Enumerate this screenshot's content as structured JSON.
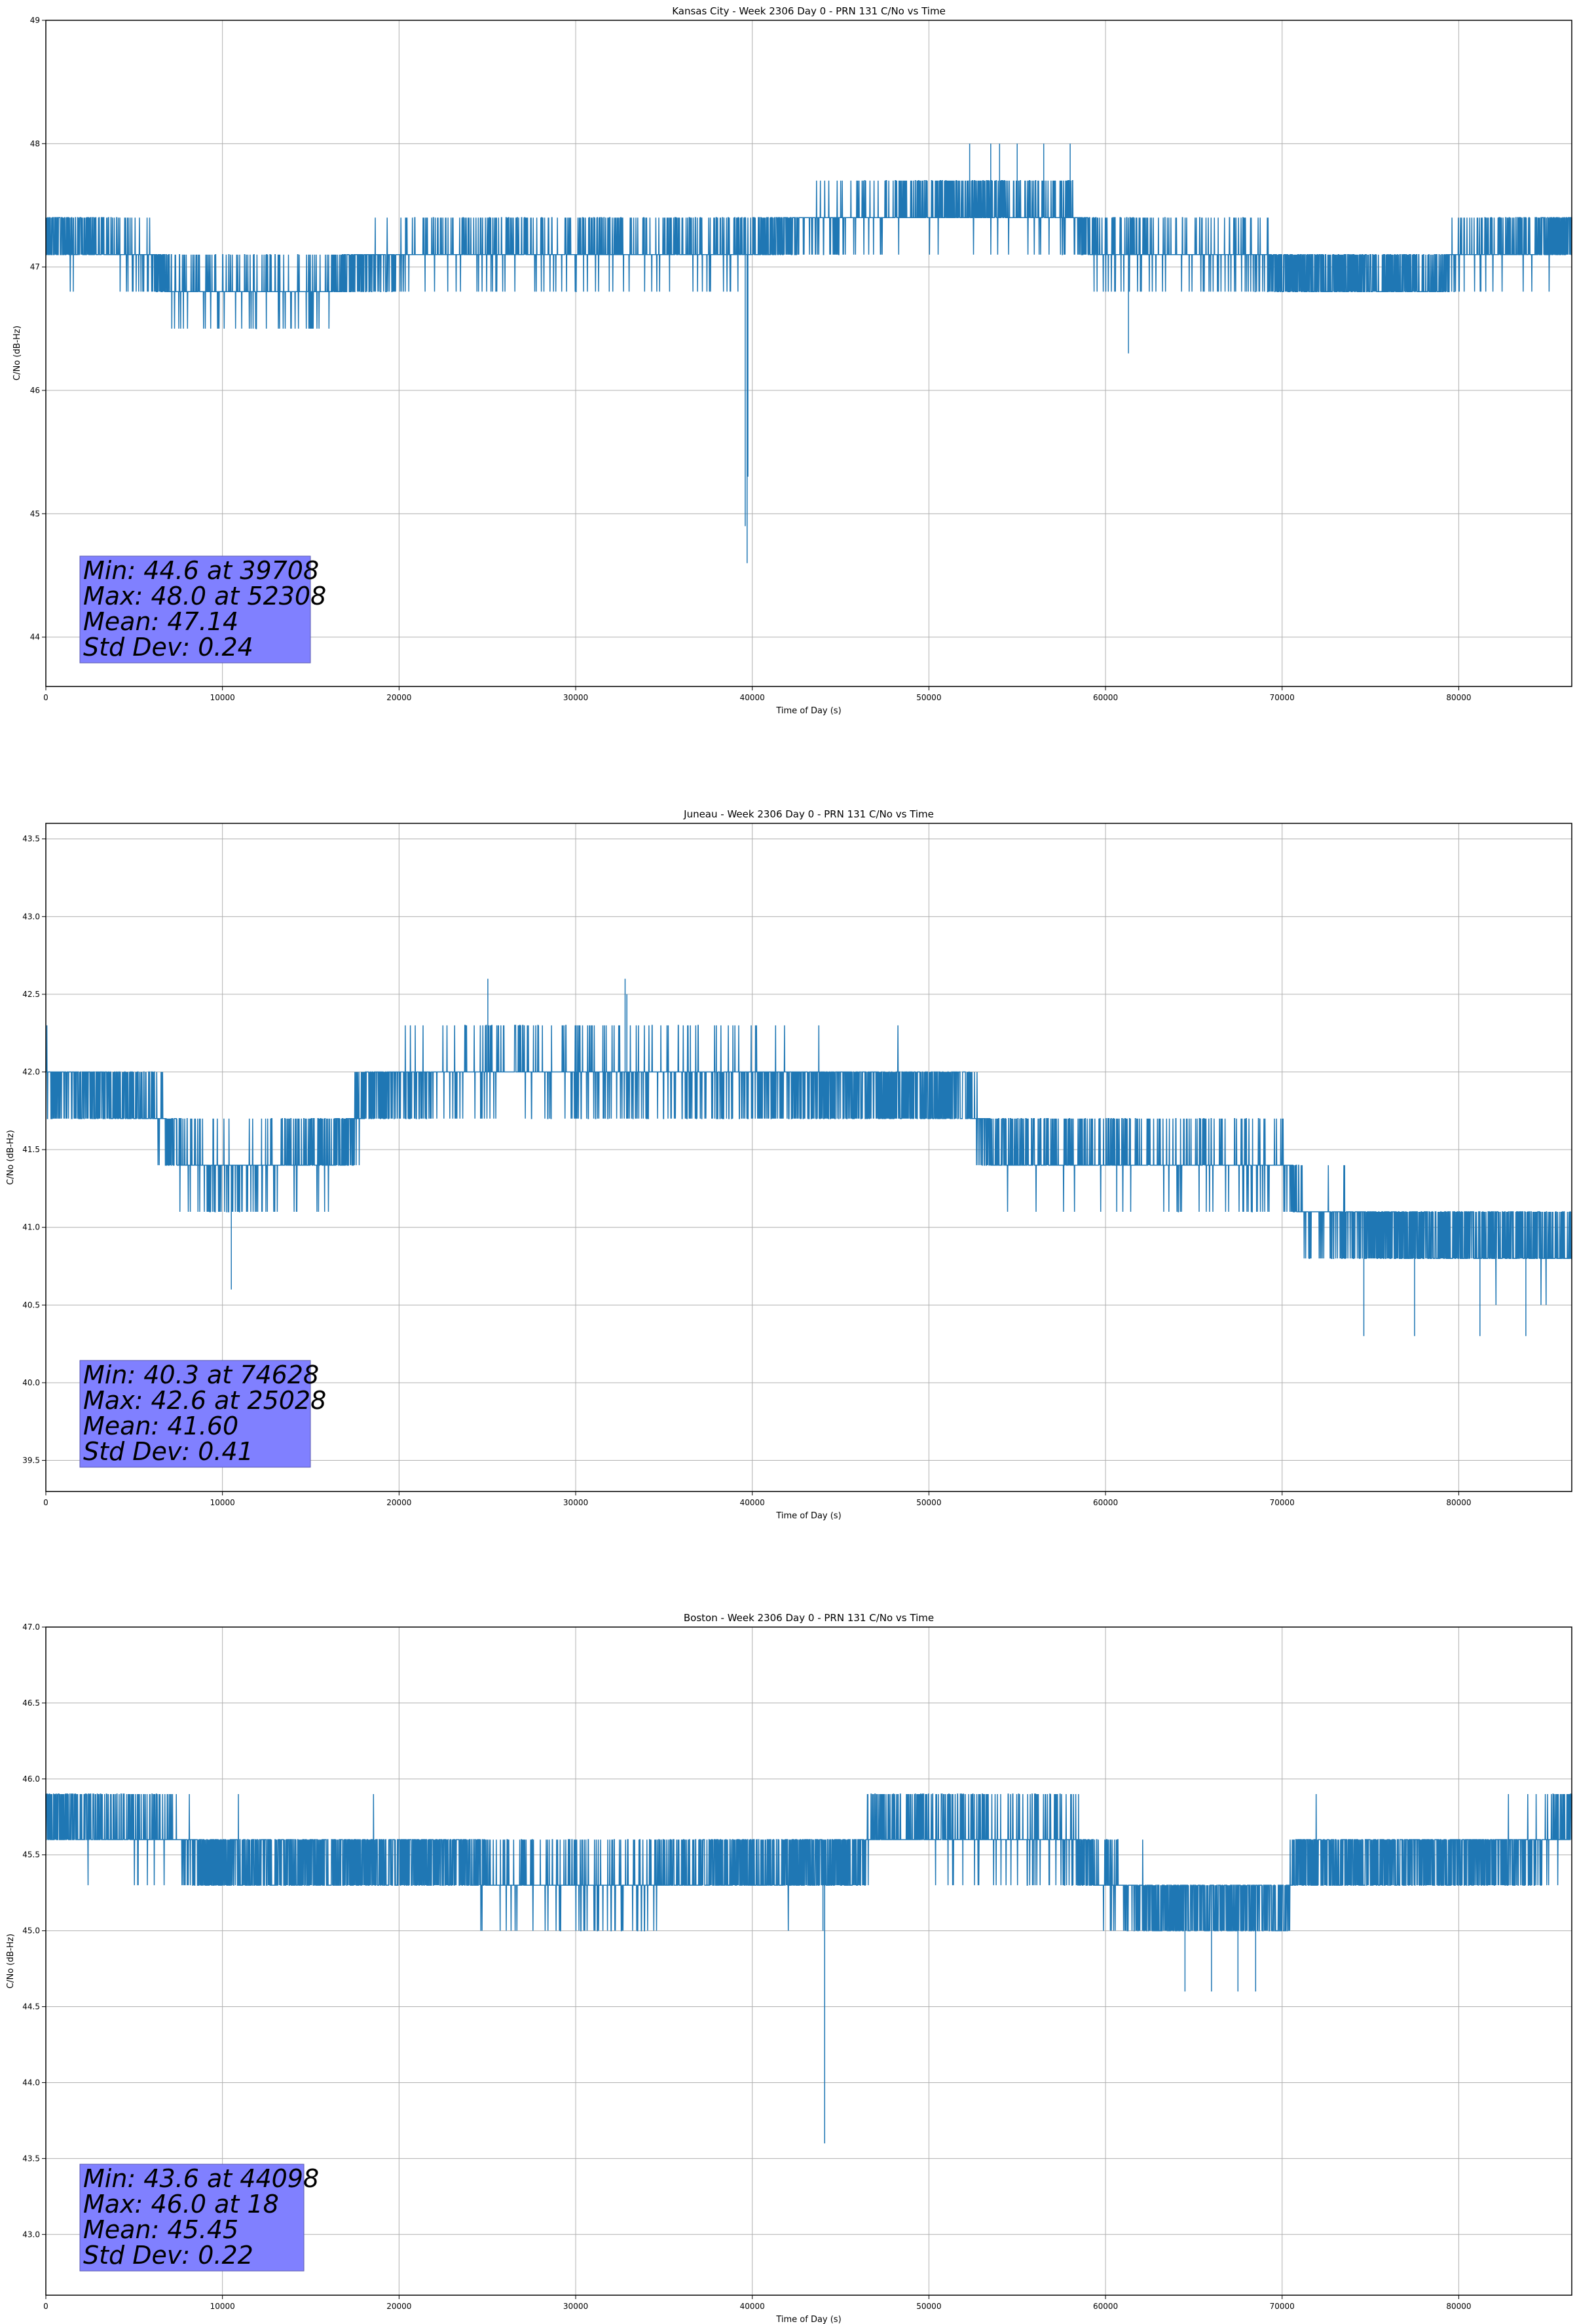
{
  "chart_data": [
    {
      "type": "line",
      "title": "Kansas City - Week 2306 Day 0 - PRN 131 C/No vs Time",
      "xlabel": "Time of Day (s)",
      "ylabel": "C/No (dB-Hz)",
      "xlim": [
        0,
        86400
      ],
      "ylim": [
        43.6,
        49.0
      ],
      "xticks": [
        "0",
        "10000",
        "20000",
        "30000",
        "40000",
        "50000",
        "60000",
        "70000",
        "80000"
      ],
      "yticks": [
        "44",
        "45",
        "46",
        "47",
        "48",
        "49"
      ],
      "grid": true,
      "series_color": "#1f77b4",
      "base_profile": [
        [
          0,
          47.25
        ],
        [
          3000,
          47.2
        ],
        [
          6000,
          47.1
        ],
        [
          7000,
          46.85
        ],
        [
          16000,
          46.8
        ],
        [
          17500,
          47.0
        ],
        [
          22000,
          47.15
        ],
        [
          30000,
          47.15
        ],
        [
          40000,
          47.15
        ],
        [
          42000,
          47.3
        ],
        [
          45000,
          47.4
        ],
        [
          52000,
          47.5
        ],
        [
          58000,
          47.45
        ],
        [
          59500,
          47.15
        ],
        [
          68000,
          47.1
        ],
        [
          70000,
          46.95
        ],
        [
          79000,
          46.9
        ],
        [
          80000,
          47.1
        ],
        [
          86400,
          47.25
        ]
      ],
      "level_step": 0.3,
      "noise_sd": 0.22,
      "extremes": [
        [
          39708,
          44.6
        ],
        [
          52308,
          48.0
        ],
        [
          53500,
          48.0
        ],
        [
          54000,
          48.0
        ],
        [
          55000,
          48.0
        ],
        [
          56500,
          48.0
        ],
        [
          58000,
          48.0
        ],
        [
          61300,
          46.3
        ],
        [
          39600,
          44.9
        ],
        [
          39750,
          45.3
        ]
      ],
      "stats": {
        "min": "Min: 44.6 at 39708",
        "max": "Max: 48.0 at 52308",
        "mean": "Mean: 47.14",
        "std": "Std Dev: 0.24"
      }
    },
    {
      "type": "line",
      "title": "Juneau - Week 2306 Day 0 - PRN 131 C/No vs Time",
      "xlabel": "Time of Day (s)",
      "ylabel": "C/No (dB-Hz)",
      "xlim": [
        0,
        86400
      ],
      "ylim": [
        39.3,
        43.6
      ],
      "xticks": [
        "0",
        "10000",
        "20000",
        "30000",
        "40000",
        "50000",
        "60000",
        "70000",
        "80000"
      ],
      "yticks": [
        "39.5",
        "40.0",
        "40.5",
        "41.0",
        "41.5",
        "42.0",
        "42.5",
        "43.0",
        "43.5"
      ],
      "grid": true,
      "series_color": "#1f77b4",
      "base_profile": [
        [
          0,
          41.95
        ],
        [
          6000,
          41.8
        ],
        [
          7500,
          41.5
        ],
        [
          10000,
          41.35
        ],
        [
          17000,
          41.5
        ],
        [
          18000,
          41.85
        ],
        [
          25000,
          42.05
        ],
        [
          30000,
          42.0
        ],
        [
          40000,
          41.95
        ],
        [
          52000,
          41.85
        ],
        [
          53500,
          41.5
        ],
        [
          60000,
          41.45
        ],
        [
          70000,
          41.4
        ],
        [
          71500,
          41.05
        ],
        [
          77000,
          40.95
        ],
        [
          86400,
          40.9
        ]
      ],
      "level_step": 0.3,
      "noise_sd": 0.22,
      "extremes": [
        [
          74628,
          40.3
        ],
        [
          25028,
          42.6
        ],
        [
          32800,
          42.6
        ],
        [
          32900,
          42.5
        ],
        [
          10500,
          40.6
        ],
        [
          77500,
          40.3
        ],
        [
          81200,
          40.3
        ],
        [
          83800,
          40.3
        ]
      ],
      "stats": {
        "min": "Min: 40.3 at 74628",
        "max": "Max: 42.6 at 25028",
        "mean": "Mean: 41.60",
        "std": "Std Dev: 0.41"
      }
    },
    {
      "type": "line",
      "title": "Boston - Week 2306 Day 0 - PRN 131 C/No vs Time",
      "xlabel": "Time of Day (s)",
      "ylabel": "C/No (dB-Hz)",
      "xlim": [
        0,
        86400
      ],
      "ylim": [
        42.6,
        47.0
      ],
      "xticks": [
        "0",
        "10000",
        "20000",
        "30000",
        "40000",
        "50000",
        "60000",
        "70000",
        "80000"
      ],
      "yticks": [
        "43.0",
        "43.5",
        "44.0",
        "44.5",
        "45.0",
        "45.5",
        "46.0",
        "46.5",
        "47.0"
      ],
      "grid": true,
      "series_color": "#1f77b4",
      "base_profile": [
        [
          0,
          45.75
        ],
        [
          7000,
          45.65
        ],
        [
          9000,
          45.45
        ],
        [
          24000,
          45.45
        ],
        [
          25000,
          45.35
        ],
        [
          34000,
          45.3
        ],
        [
          36000,
          45.4
        ],
        [
          46000,
          45.45
        ],
        [
          47000,
          45.7
        ],
        [
          58000,
          45.6
        ],
        [
          60000,
          45.35
        ],
        [
          63000,
          45.15
        ],
        [
          70000,
          45.15
        ],
        [
          71000,
          45.45
        ],
        [
          84000,
          45.5
        ],
        [
          86400,
          45.7
        ]
      ],
      "level_step": 0.3,
      "noise_sd": 0.22,
      "extremes": [
        [
          44098,
          43.6
        ],
        [
          44000,
          45.0
        ],
        [
          64500,
          44.6
        ],
        [
          66000,
          44.6
        ],
        [
          67500,
          44.6
        ],
        [
          68500,
          44.6
        ]
      ],
      "stats": {
        "min": "Min: 43.6 at 44098",
        "max": "Max: 46.0 at 18",
        "mean": "Mean: 45.45",
        "std": "Std Dev: 0.22"
      }
    }
  ]
}
